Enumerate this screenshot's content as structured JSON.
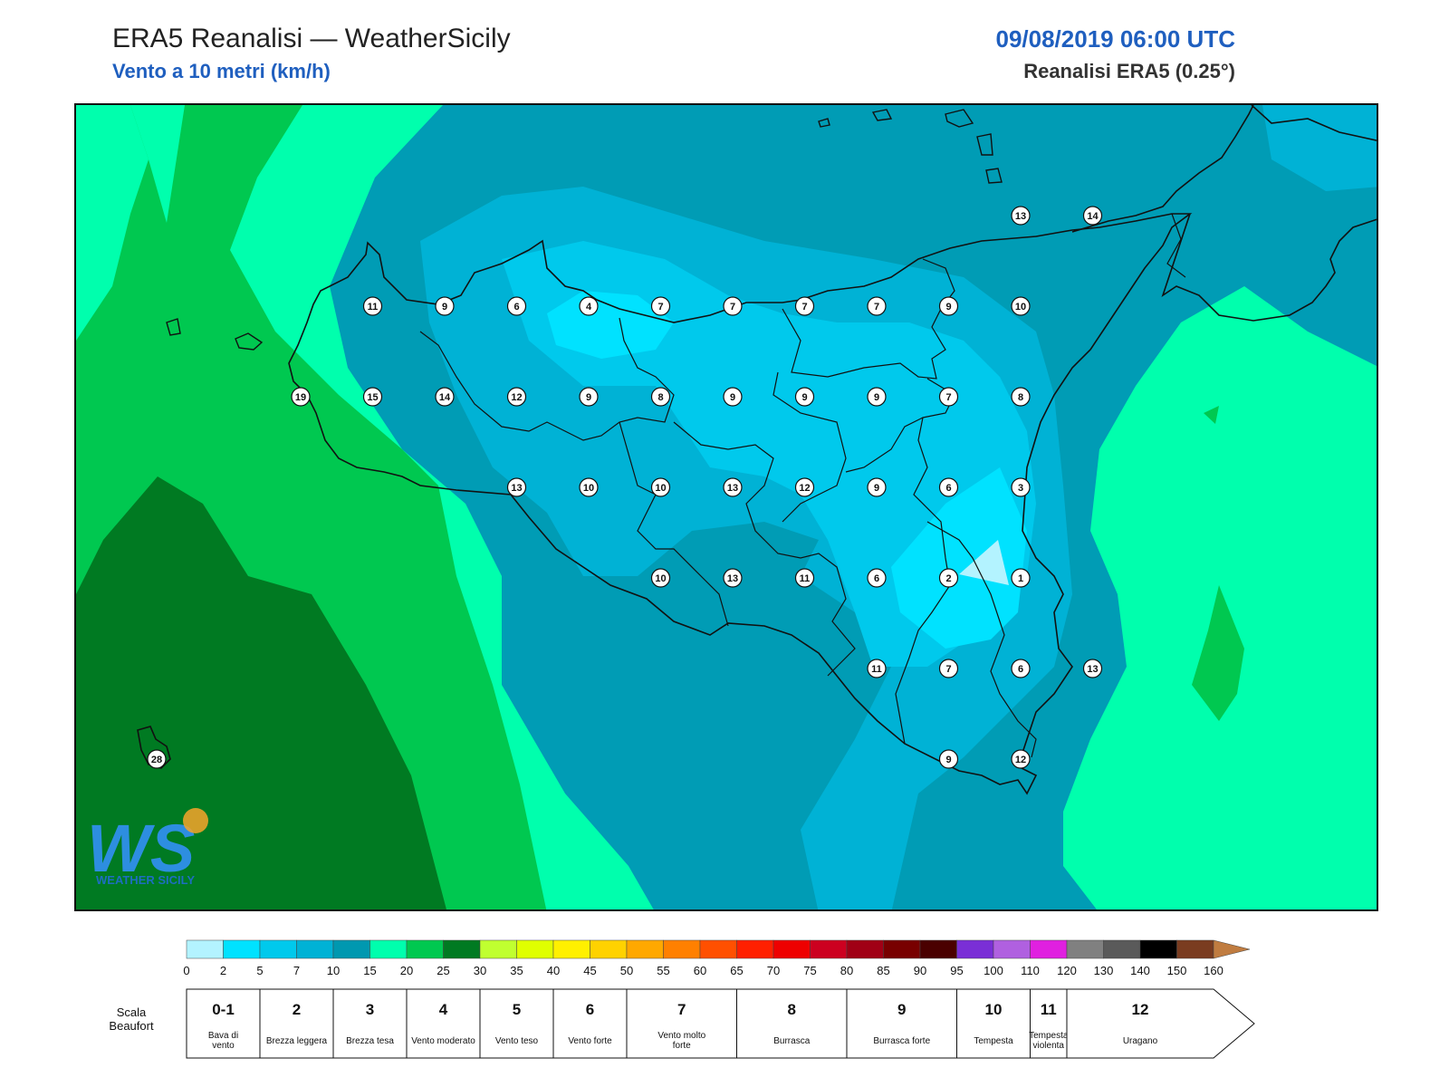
{
  "header": {
    "title": "ERA5 Reanalisi — WeatherSicily",
    "subtitle": "Vento a 10 metri (km/h)",
    "datetime": "09/08/2019 06:00 UTC",
    "source": "Reanalisi ERA5 (0.25°)"
  },
  "logo": {
    "letters": "WS",
    "text": "WEATHER SICILY"
  },
  "stations": [
    {
      "lon": 12.5,
      "lat": 38.5,
      "value": "11"
    },
    {
      "lon": 13.0,
      "lat": 38.5,
      "value": "9"
    },
    {
      "lon": 13.5,
      "lat": 38.5,
      "value": "6"
    },
    {
      "lon": 14.0,
      "lat": 38.5,
      "value": "4"
    },
    {
      "lon": 14.5,
      "lat": 38.5,
      "value": "7"
    },
    {
      "lon": 15.0,
      "lat": 38.5,
      "value": "7"
    },
    {
      "lon": 15.5,
      "lat": 38.5,
      "value": "7"
    },
    {
      "lon": 16.0,
      "lat": 38.5,
      "value": "7"
    },
    {
      "lon": 16.5,
      "lat": 38.5,
      "value": "9"
    },
    {
      "lon": 17.0,
      "lat": 38.5,
      "value": "10"
    },
    {
      "lon": 17.0,
      "lat": 39.0,
      "value": "13"
    },
    {
      "lon": 17.5,
      "lat": 39.0,
      "value": "14"
    },
    {
      "lon": 12.0,
      "lat": 38.0,
      "value": "19"
    },
    {
      "lon": 12.5,
      "lat": 38.0,
      "value": "15"
    },
    {
      "lon": 13.0,
      "lat": 38.0,
      "value": "14"
    },
    {
      "lon": 13.5,
      "lat": 38.0,
      "value": "12"
    },
    {
      "lon": 14.0,
      "lat": 38.0,
      "value": "9"
    },
    {
      "lon": 14.5,
      "lat": 38.0,
      "value": "8"
    },
    {
      "lon": 15.0,
      "lat": 38.0,
      "value": "9"
    },
    {
      "lon": 15.5,
      "lat": 38.0,
      "value": "9"
    },
    {
      "lon": 16.0,
      "lat": 38.0,
      "value": "9"
    },
    {
      "lon": 16.5,
      "lat": 38.0,
      "value": "7"
    },
    {
      "lon": 17.0,
      "lat": 38.0,
      "value": "8"
    },
    {
      "lon": 13.5,
      "lat": 37.5,
      "value": "13"
    },
    {
      "lon": 14.0,
      "lat": 37.5,
      "value": "10"
    },
    {
      "lon": 14.5,
      "lat": 37.5,
      "value": "10"
    },
    {
      "lon": 15.0,
      "lat": 37.5,
      "value": "13"
    },
    {
      "lon": 15.5,
      "lat": 37.5,
      "value": "12"
    },
    {
      "lon": 16.0,
      "lat": 37.5,
      "value": "9"
    },
    {
      "lon": 16.5,
      "lat": 37.5,
      "value": "6"
    },
    {
      "lon": 17.0,
      "lat": 37.5,
      "value": "3"
    },
    {
      "lon": 14.5,
      "lat": 37.0,
      "value": "10"
    },
    {
      "lon": 15.0,
      "lat": 37.0,
      "value": "13"
    },
    {
      "lon": 15.5,
      "lat": 37.0,
      "value": "11"
    },
    {
      "lon": 16.0,
      "lat": 37.0,
      "value": "6"
    },
    {
      "lon": 16.5,
      "lat": 37.0,
      "value": "2"
    },
    {
      "lon": 17.0,
      "lat": 37.0,
      "value": "1"
    },
    {
      "lon": 16.0,
      "lat": 36.5,
      "value": "11"
    },
    {
      "lon": 16.5,
      "lat": 36.5,
      "value": "7"
    },
    {
      "lon": 17.0,
      "lat": 36.5,
      "value": "6"
    },
    {
      "lon": 17.5,
      "lat": 36.5,
      "value": "13"
    },
    {
      "lon": 16.5,
      "lat": 36.0,
      "value": "9"
    },
    {
      "lon": 17.0,
      "lat": 36.0,
      "value": "12"
    },
    {
      "lon": 11.0,
      "lat": 36.0,
      "value": "28"
    }
  ],
  "colorbar": {
    "ticks": [
      "0",
      "2",
      "5",
      "7",
      "10",
      "15",
      "20",
      "25",
      "30",
      "35",
      "40",
      "45",
      "50",
      "55",
      "60",
      "65",
      "70",
      "75",
      "80",
      "85",
      "90",
      "95",
      "100",
      "110",
      "120",
      "130",
      "140",
      "150",
      "160"
    ],
    "colors": [
      "#b3f3ff",
      "#00e2ff",
      "#00c9ec",
      "#00b2d5",
      "#0098b0",
      "#00ffad",
      "#00c850",
      "#007a22",
      "#c0ff30",
      "#e0ff00",
      "#fff000",
      "#ffd200",
      "#ffa800",
      "#ff8000",
      "#ff5000",
      "#ff2000",
      "#ee0000",
      "#cc0020",
      "#a00015",
      "#780000",
      "#4a0000",
      "#7a2fd6",
      "#b060e0",
      "#e020e0",
      "#808080",
      "#5a5a5a",
      "#000000",
      "#7a3c20",
      "#c07c40"
    ]
  },
  "beaufort": {
    "label": "Scala Beaufort",
    "classes": [
      {
        "num": "0-1",
        "name": "Bava di vento"
      },
      {
        "num": "2",
        "name": "Brezza leggera"
      },
      {
        "num": "3",
        "name": "Brezza tesa"
      },
      {
        "num": "4",
        "name": "Vento moderato"
      },
      {
        "num": "5",
        "name": "Vento teso"
      },
      {
        "num": "6",
        "name": "Vento forte"
      },
      {
        "num": "7",
        "name": "Vento molto forte"
      },
      {
        "num": "8",
        "name": "Burrasca"
      },
      {
        "num": "9",
        "name": "Burrasca forte"
      },
      {
        "num": "10",
        "name": "Tempesta"
      },
      {
        "num": "11",
        "name": "Tempesta violenta"
      },
      {
        "num": "12",
        "name": "Uragano"
      }
    ]
  }
}
